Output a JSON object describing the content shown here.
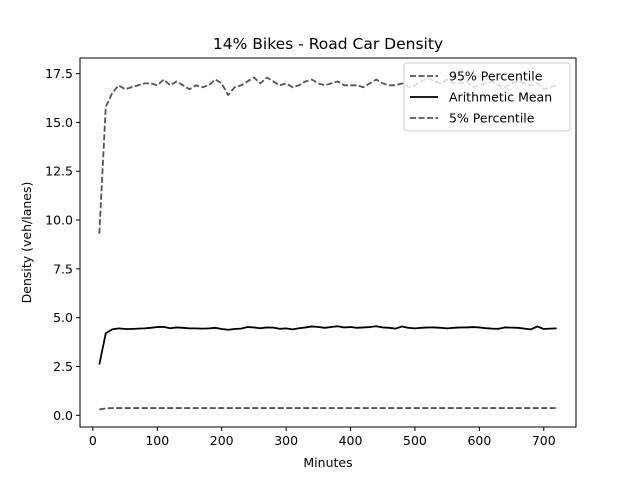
{
  "chart_data": {
    "type": "line",
    "title": "14% Bikes - Road Car Density",
    "xlabel": "Minutes",
    "ylabel": "Density (veh/lanes)",
    "xlim": [
      -20,
      750
    ],
    "ylim": [
      -0.6,
      18.3
    ],
    "xticks": [
      0,
      100,
      200,
      300,
      400,
      500,
      600,
      700
    ],
    "xtick_labels": [
      "0",
      "100",
      "200",
      "300",
      "400",
      "500",
      "600",
      "700"
    ],
    "yticks": [
      0,
      2.5,
      5,
      7.5,
      10,
      12.5,
      15,
      17.5
    ],
    "ytick_labels": [
      "0.0",
      "2.5",
      "5.0",
      "7.5",
      "10.0",
      "12.5",
      "15.0",
      "17.5"
    ],
    "grid": false,
    "legend_position": "top-right",
    "x": [
      10,
      20,
      30,
      40,
      50,
      60,
      70,
      80,
      90,
      100,
      110,
      120,
      130,
      140,
      150,
      160,
      170,
      180,
      190,
      200,
      210,
      220,
      230,
      240,
      250,
      260,
      270,
      280,
      290,
      300,
      310,
      320,
      330,
      340,
      350,
      360,
      370,
      380,
      390,
      400,
      410,
      420,
      430,
      440,
      450,
      460,
      470,
      480,
      490,
      500,
      510,
      520,
      530,
      540,
      550,
      560,
      570,
      580,
      590,
      600,
      610,
      620,
      630,
      640,
      650,
      660,
      670,
      680,
      690,
      700,
      710,
      720
    ],
    "series": [
      {
        "name": "95% Percentile",
        "color": "#555555",
        "style": "dashed",
        "values": [
          9.3,
          15.8,
          16.5,
          16.9,
          16.7,
          16.8,
          16.9,
          17.0,
          17.0,
          16.9,
          17.2,
          16.9,
          17.1,
          16.9,
          16.7,
          16.9,
          16.8,
          16.9,
          17.2,
          17.0,
          16.4,
          16.8,
          16.9,
          17.1,
          17.3,
          17.0,
          17.3,
          17.1,
          16.9,
          17.0,
          16.8,
          16.9,
          17.1,
          17.2,
          17.0,
          16.9,
          17.0,
          17.1,
          16.9,
          16.9,
          16.9,
          16.8,
          17.0,
          17.2,
          17.0,
          16.9,
          16.9,
          17.0,
          16.8,
          16.9,
          17.1,
          17.3,
          17.1,
          17.0,
          17.2,
          17.0,
          17.0,
          17.1,
          16.8,
          16.9,
          17.0,
          17.1,
          16.9,
          16.8,
          17.0,
          17.1,
          17.0,
          16.9,
          17.0,
          16.7,
          16.8,
          16.9
        ]
      },
      {
        "name": "Arithmetic Mean",
        "color": "#000000",
        "style": "solid",
        "values": [
          2.6,
          4.2,
          4.4,
          4.45,
          4.42,
          4.42,
          4.44,
          4.45,
          4.48,
          4.52,
          4.53,
          4.46,
          4.5,
          4.48,
          4.45,
          4.45,
          4.44,
          4.45,
          4.48,
          4.42,
          4.38,
          4.42,
          4.44,
          4.52,
          4.5,
          4.46,
          4.5,
          4.49,
          4.43,
          4.45,
          4.4,
          4.46,
          4.5,
          4.55,
          4.52,
          4.48,
          4.52,
          4.56,
          4.5,
          4.52,
          4.48,
          4.5,
          4.52,
          4.56,
          4.5,
          4.48,
          4.44,
          4.55,
          4.48,
          4.45,
          4.48,
          4.5,
          4.5,
          4.48,
          4.45,
          4.48,
          4.5,
          4.5,
          4.52,
          4.5,
          4.46,
          4.44,
          4.43,
          4.5,
          4.49,
          4.48,
          4.44,
          4.4,
          4.55,
          4.42,
          4.44,
          4.45
        ]
      },
      {
        "name": "5% Percentile",
        "color": "#555555",
        "style": "dashed",
        "values": [
          0.3,
          0.35,
          0.37,
          0.37,
          0.37,
          0.37,
          0.37,
          0.37,
          0.37,
          0.37,
          0.37,
          0.37,
          0.37,
          0.37,
          0.37,
          0.37,
          0.37,
          0.37,
          0.37,
          0.37,
          0.37,
          0.37,
          0.37,
          0.37,
          0.37,
          0.37,
          0.37,
          0.37,
          0.37,
          0.37,
          0.37,
          0.37,
          0.37,
          0.37,
          0.37,
          0.37,
          0.37,
          0.37,
          0.37,
          0.37,
          0.37,
          0.37,
          0.37,
          0.37,
          0.37,
          0.37,
          0.37,
          0.37,
          0.37,
          0.37,
          0.37,
          0.37,
          0.37,
          0.37,
          0.37,
          0.37,
          0.37,
          0.37,
          0.37,
          0.37,
          0.37,
          0.37,
          0.37,
          0.37,
          0.37,
          0.37,
          0.37,
          0.37,
          0.37,
          0.37,
          0.37,
          0.37
        ]
      }
    ]
  }
}
